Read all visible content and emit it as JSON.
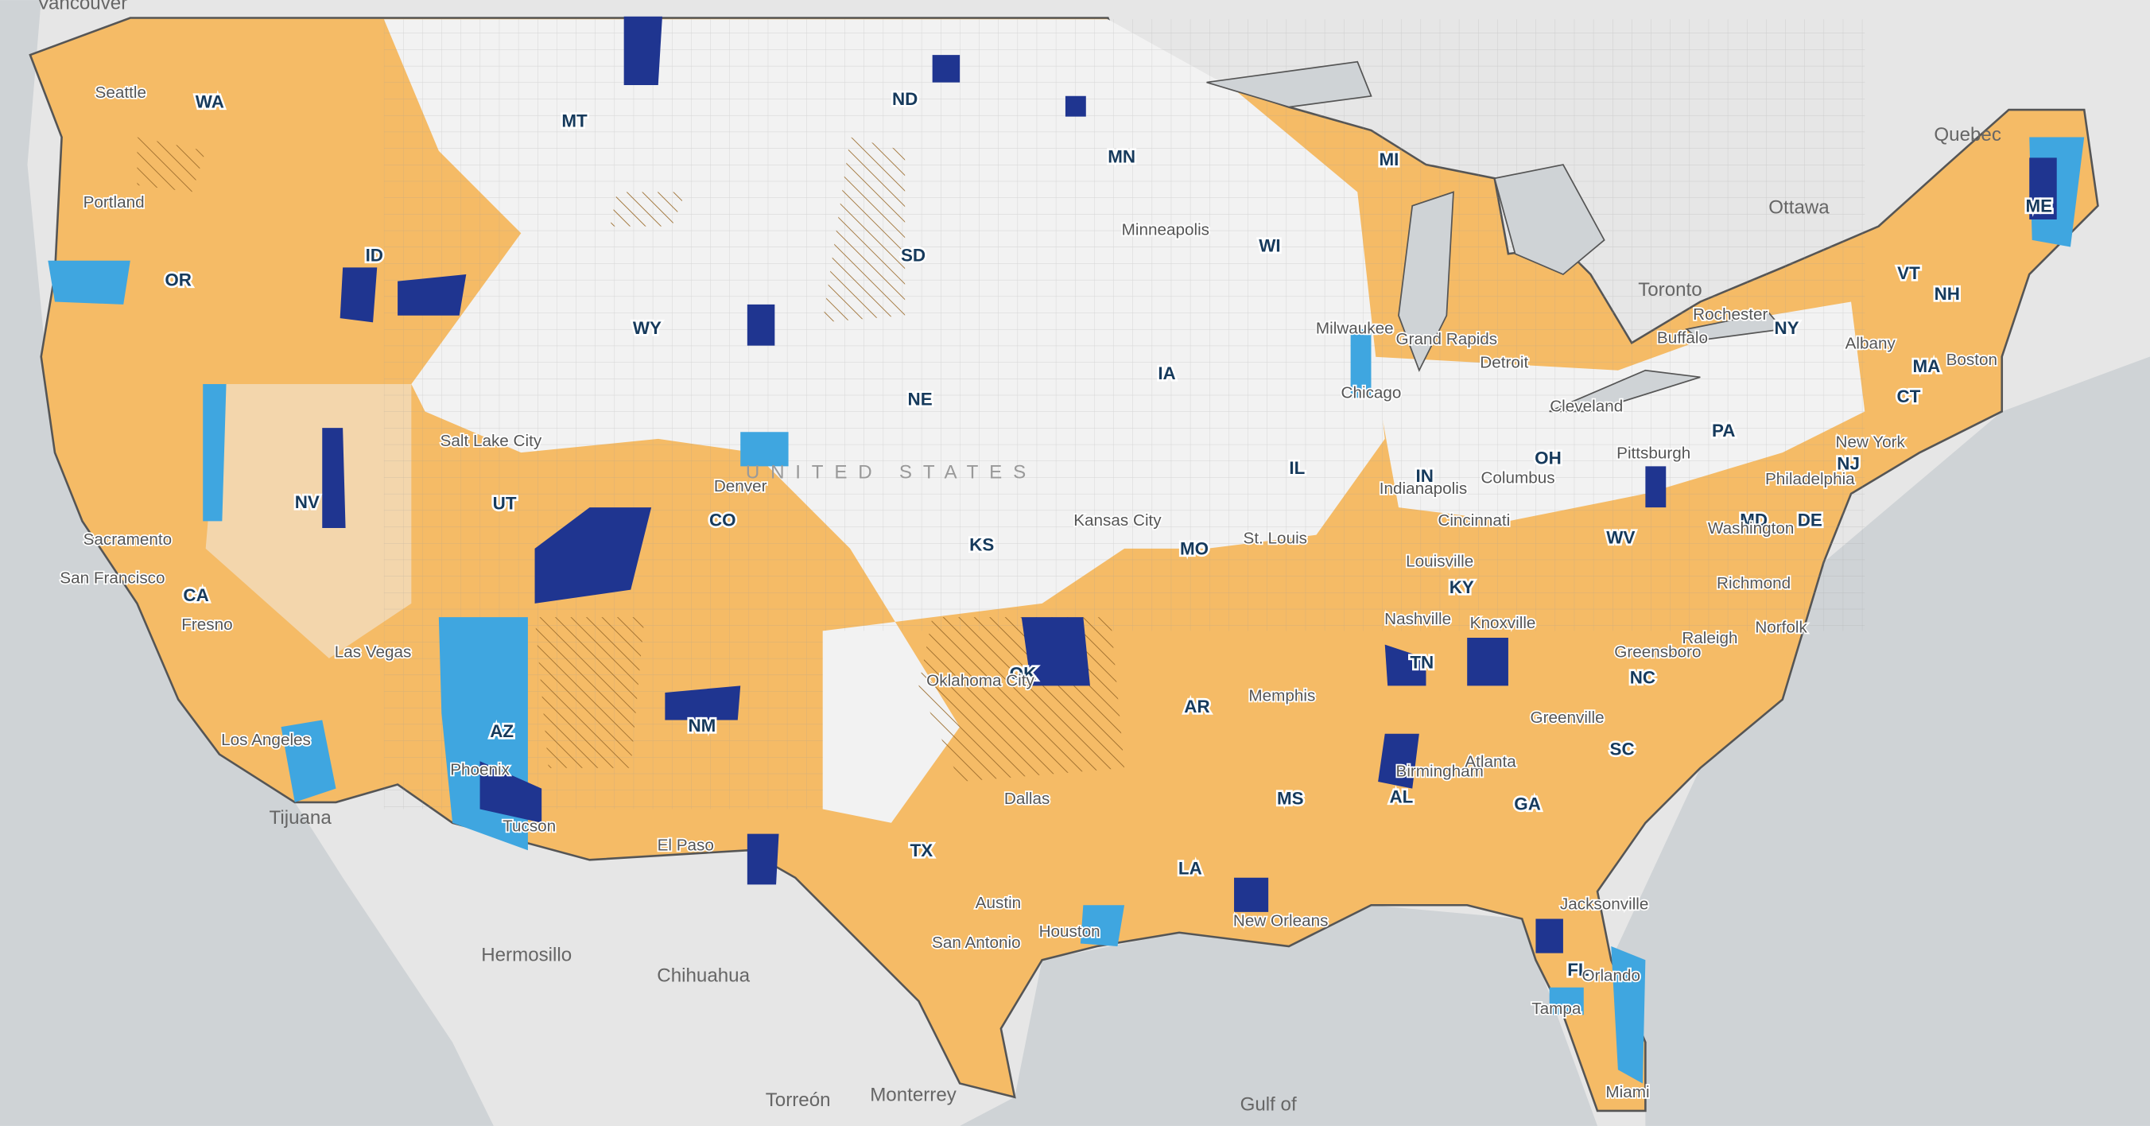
{
  "map": {
    "places": [
      "Vancouver",
      "Quebec",
      "Ottawa",
      "Toronto",
      "Hermosillo",
      "Chihuahua",
      "Torreón",
      "Monterrey",
      "Tijuana",
      "Gulf of"
    ],
    "states": [
      "WA",
      "OR",
      "ID",
      "MT",
      "ND",
      "MN",
      "SD",
      "WY",
      "NE",
      "IA",
      "WI",
      "MI",
      "NV",
      "UT",
      "CA",
      "CO",
      "KS",
      "MO",
      "IL",
      "IN",
      "OH",
      "PA",
      "NY",
      "VT",
      "NH",
      "ME",
      "MA",
      "CT",
      "NJ",
      "DE",
      "MD",
      "WV",
      "KY",
      "TN",
      "NC",
      "SC",
      "GA",
      "AL",
      "MS",
      "AR",
      "LA",
      "OK",
      "TX",
      "NM",
      "AZ",
      "FL"
    ],
    "cities": [
      "Seattle",
      "Portland",
      "Sacramento",
      "San Francisco",
      "Fresno",
      "Las Vegas",
      "Los Angeles",
      "Phoenix",
      "Tucson",
      "El Paso",
      "Salt Lake City",
      "Denver",
      "Minneapolis",
      "Milwaukee",
      "Grand Rapids",
      "Detroit",
      "Chicago",
      "Cleveland",
      "Rochester",
      "Buffalo",
      "Albany",
      "Boston",
      "New York",
      "Philadelphia",
      "Pittsburgh",
      "Columbus",
      "Indianapolis",
      "Cincinnati",
      "Louisville",
      "St. Louis",
      "Kansas City",
      "Oklahoma City",
      "Dallas",
      "Austin",
      "San Antonio",
      "Houston",
      "New Orleans",
      "Memphis",
      "Nashville",
      "Knoxville",
      "Birmingham",
      "Atlanta",
      "Greenville",
      "Greensboro",
      "Raleigh",
      "Norfolk",
      "Washington",
      "Richmond",
      "Jacksonville",
      "Orlando",
      "Tampa",
      "Miami"
    ],
    "country_label": "UNITED STATES"
  }
}
